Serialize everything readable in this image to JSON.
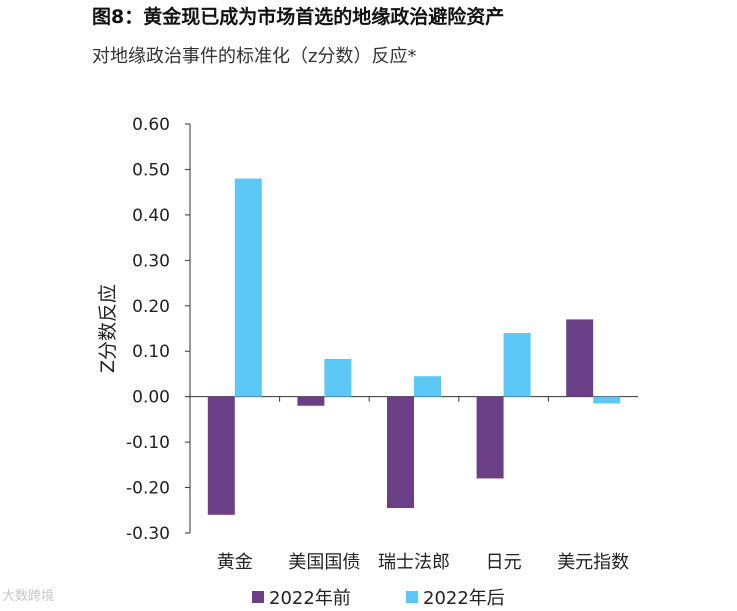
{
  "header": {
    "title": "图8：黄金现已成为市场首选的地缘政治避险资产",
    "subtitle": "对地缘政治事件的标准化（z分数）反应*"
  },
  "watermark": "大数跨境",
  "chart_data": {
    "type": "bar",
    "title": "图8：黄金现已成为市场首选的地缘政治避险资产",
    "subtitle": "对地缘政治事件的标准化（z分数）反应*",
    "xlabel": "",
    "ylabel": "Z分数反应",
    "ylim": [
      -0.3,
      0.6
    ],
    "yticks": [
      "0.60",
      "0.50",
      "0.40",
      "0.30",
      "0.20",
      "0.10",
      "0.00",
      "-0.10",
      "-0.20",
      "-0.30"
    ],
    "categories": [
      "黄金",
      "美国国债",
      "瑞士法郎",
      "日元",
      "美元指数"
    ],
    "series": [
      {
        "name": "2022年前",
        "color": "#6b3f86",
        "values": [
          -0.26,
          -0.02,
          -0.245,
          -0.18,
          0.17
        ]
      },
      {
        "name": "2022年后",
        "color": "#5bc8f5",
        "values": [
          0.48,
          0.083,
          0.045,
          0.14,
          -0.015
        ]
      }
    ],
    "legend_position": "bottom",
    "grid": false
  }
}
